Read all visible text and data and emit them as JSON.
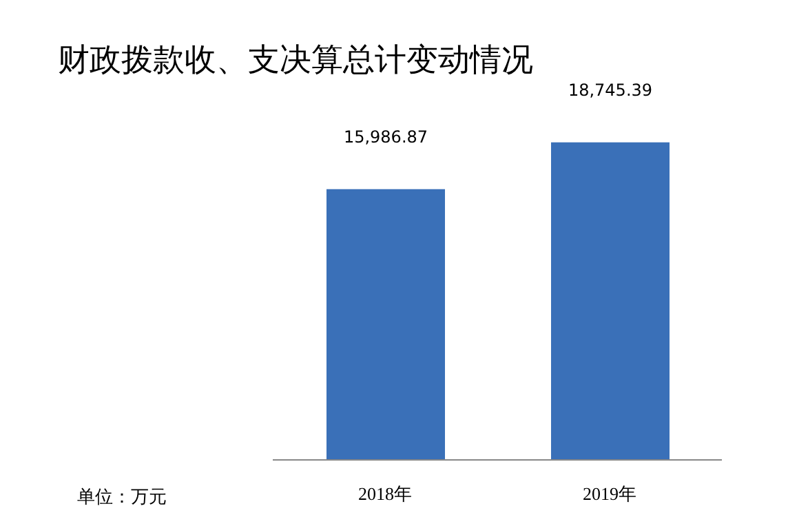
{
  "chart_data": {
    "type": "bar",
    "title": "财政拨款收、支决算总计变动情况",
    "categories": [
      "2018年",
      "2019年"
    ],
    "values": [
      15986.87,
      18745.39
    ],
    "value_labels": [
      "15,986.87",
      "18,745.39"
    ],
    "color": "#3a70b8",
    "annotations": [
      "单位：万元"
    ]
  }
}
